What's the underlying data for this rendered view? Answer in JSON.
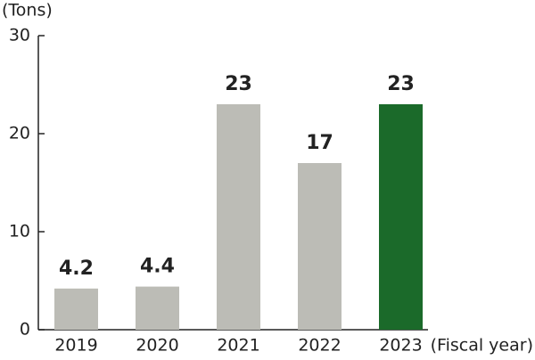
{
  "chart_data": {
    "type": "bar",
    "y_label": "(Tons)",
    "x_label": "(Fiscal year)",
    "categories": [
      "2019",
      "2020",
      "2021",
      "2022",
      "2023"
    ],
    "values": [
      4.2,
      4.4,
      23,
      17,
      23
    ],
    "colors": [
      "#bcbcb6",
      "#bcbcb6",
      "#bcbcb6",
      "#bcbcb6",
      "#1b6a2a"
    ],
    "ylim": [
      0,
      30
    ],
    "yticks": [
      0,
      10,
      20,
      30
    ],
    "grid": false
  }
}
